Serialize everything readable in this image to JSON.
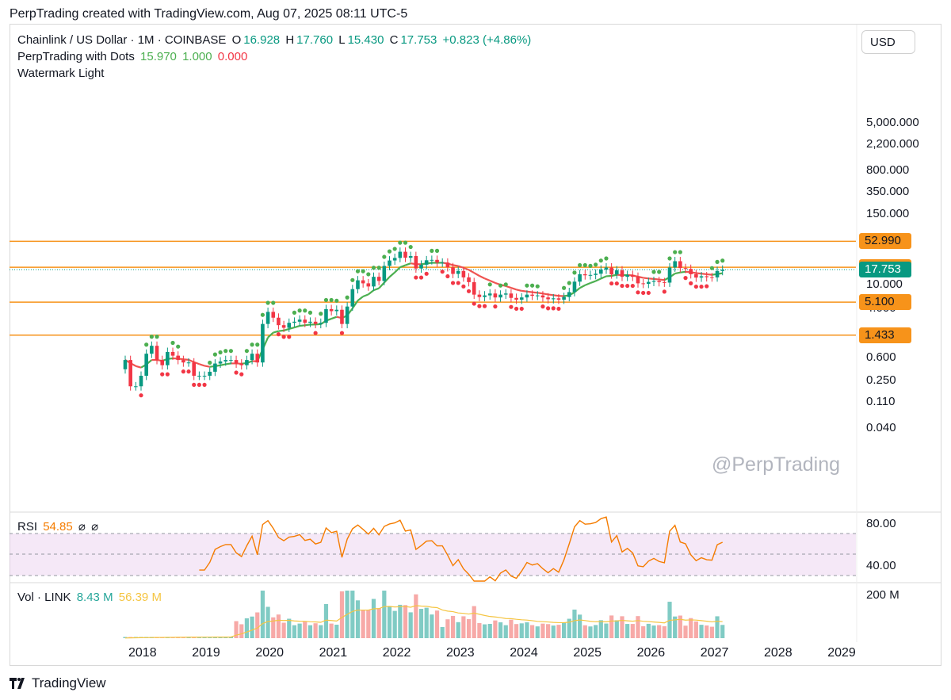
{
  "caption": "PerpTrading created with TradingView.com, Aug 07, 2025 08:11 UTC-5",
  "legend": {
    "symbol": "Chainlink / US Dollar · 1M · COINBASE",
    "o_label": "O",
    "o": "16.928",
    "h_label": "H",
    "h": "17.760",
    "l_label": "L",
    "l": "15.430",
    "c_label": "C",
    "c": "17.753",
    "change": "+0.823 (+4.86%)",
    "indicator": "PerpTrading with Dots",
    "ind_v1": "15.970",
    "ind_v2": "1.000",
    "ind_v3": "0.000",
    "watermark_ind": "Watermark Light"
  },
  "currency_button": "USD",
  "watermark": "@PerpTrading",
  "brand": "TradingView",
  "chart_data": [
    {
      "type": "candlestick",
      "title": "Chainlink / US Dollar · 1M · COINBASE",
      "scale": "log",
      "y_ticks": [
        "5,000.000",
        "2,200.000",
        "800.000",
        "350.000",
        "150.000",
        "10.000",
        "4.000",
        "0.600",
        "0.250",
        "0.110",
        "0.040"
      ],
      "y_tick_values": [
        5000,
        2200,
        800,
        350,
        150,
        10,
        4,
        0.6,
        0.25,
        0.11,
        0.04
      ],
      "x_ticks": [
        "2018",
        "2019",
        "2020",
        "2021",
        "2022",
        "2023",
        "2024",
        "2025",
        "2026",
        "2027",
        "2028",
        "2029"
      ],
      "horizontal_levels": [
        {
          "value": 52.99,
          "label": "52.990",
          "color": "#f7931a"
        },
        {
          "value": 19.51,
          "label": "19.510",
          "color": "#f7931a"
        },
        {
          "value": 5.1,
          "label": "5.100",
          "color": "#f7931a"
        },
        {
          "value": 1.433,
          "label": "1.433",
          "color": "#f7931a"
        }
      ],
      "last_price": {
        "value": 17.753,
        "label": "17.753",
        "color": "#089981"
      },
      "closes": [
        0.55,
        0.2,
        0.2,
        0.3,
        0.7,
        0.95,
        0.55,
        0.45,
        0.75,
        0.65,
        0.55,
        0.5,
        0.5,
        0.3,
        0.3,
        0.3,
        0.35,
        0.48,
        0.52,
        0.55,
        0.55,
        0.48,
        0.45,
        0.55,
        0.7,
        0.5,
        2.2,
        3.5,
        2.8,
        2.1,
        1.9,
        2.3,
        2.4,
        2.6,
        2.3,
        2.4,
        2.2,
        2.3,
        3.9,
        3.6,
        3.8,
        2.2,
        4.3,
        8.4,
        11.8,
        10.5,
        9.3,
        13.5,
        11.5,
        20.5,
        25.3,
        27.9,
        35.4,
        28.1,
        30.0,
        18.6,
        21.5,
        25.5,
        25.9,
        23.3,
        23.3,
        19.5,
        15.1,
        16.9,
        13.2,
        11.0,
        6.8,
        6.2,
        6.6,
        7.1,
        6.1,
        6.8,
        7.1,
        6.0,
        5.6,
        6.1,
        6.8,
        6.5,
        6.6,
        6.1,
        5.7,
        5.9,
        5.6,
        6.2,
        7.5,
        11.2,
        14.9,
        14.3,
        14.5,
        15.2,
        17.8,
        19.3,
        14.8,
        17.3,
        13.5,
        14.5,
        13.5,
        10.5,
        10.3,
        11.1,
        11.5,
        11.0,
        10.8,
        19.3,
        24.6,
        18.9,
        18.3,
        14.9,
        13.1,
        13.8,
        13.3,
        13.2,
        16.9,
        17.753
      ],
      "rsi": {
        "label": "RSI",
        "value": "54.85",
        "y_ticks": [
          "80.00",
          "40.00"
        ],
        "upper": 70,
        "lower": 30
      },
      "volume": {
        "label": "Vol · LINK",
        "value": "8.43 M",
        "ma": "56.39 M",
        "y_ticks": [
          "200 M"
        ]
      }
    }
  ]
}
